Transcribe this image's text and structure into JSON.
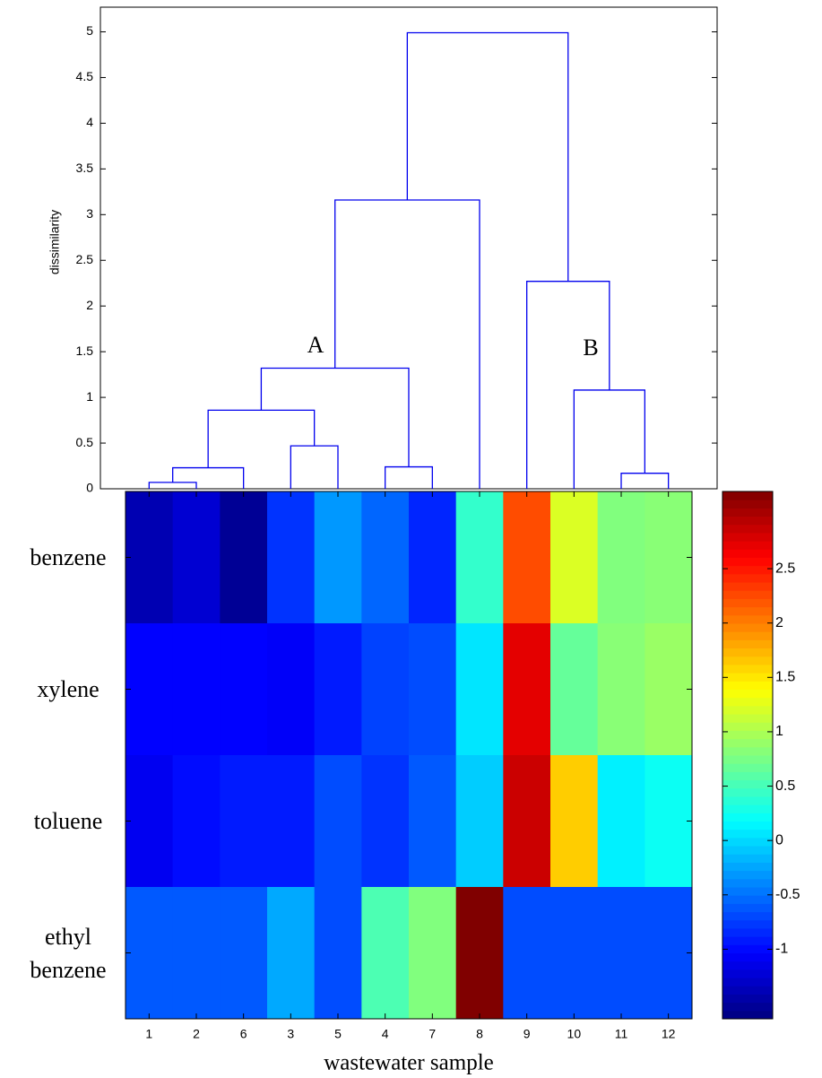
{
  "chart_data": [
    {
      "type": "dendrogram",
      "ylabel": "dissimilarity",
      "ylim": [
        0,
        5.27
      ],
      "yticks": [
        0,
        0.5,
        1,
        1.5,
        2,
        2.5,
        3,
        3.5,
        4,
        4.5,
        5
      ],
      "color": "#0000ee",
      "linkage": [
        [
          1,
          2,
          0.07
        ],
        [
          13,
          6,
          0.23
        ],
        [
          11,
          12,
          0.17
        ],
        [
          4,
          7,
          0.24
        ],
        [
          3,
          5,
          0.47
        ],
        [
          14,
          17,
          0.86
        ],
        [
          10,
          15,
          1.08
        ],
        [
          18,
          16,
          1.32
        ],
        [
          9,
          19,
          2.27
        ],
        [
          20,
          8,
          3.16
        ],
        [
          22,
          21,
          4.99
        ]
      ],
      "annotations": [
        "A",
        "B"
      ]
    },
    {
      "type": "heatmap",
      "xlabel": "wastewater sample",
      "categories": [
        "1",
        "2",
        "6",
        "3",
        "5",
        "4",
        "7",
        "8",
        "9",
        "10",
        "11",
        "12"
      ],
      "rows": [
        "benzene",
        "xylene",
        "toluene",
        "ethyl benzene"
      ],
      "values": [
        [
          -1.4,
          -1.25,
          -1.54,
          -0.79,
          -0.31,
          -0.55,
          -0.86,
          0.42,
          2.24,
          1.22,
          0.79,
          0.83
        ],
        [
          -1.03,
          -1.03,
          -1.03,
          -1.06,
          -0.91,
          -0.72,
          -0.67,
          0.06,
          2.73,
          0.66,
          0.83,
          0.91
        ],
        [
          -1.1,
          -0.98,
          -0.91,
          -0.91,
          -0.67,
          -0.79,
          -0.61,
          -0.06,
          2.85,
          1.63,
          0.11,
          0.23
        ],
        [
          -0.61,
          -0.61,
          -0.61,
          -0.23,
          -0.67,
          0.54,
          0.79,
          3.21,
          -0.67,
          -0.67,
          -0.67,
          -0.67
        ]
      ],
      "colormap": "jet",
      "clim": [
        -1.64,
        3.21
      ],
      "cticks": [
        -1,
        -0.5,
        0,
        0.5,
        1,
        1.5,
        2,
        2.5
      ]
    }
  ]
}
